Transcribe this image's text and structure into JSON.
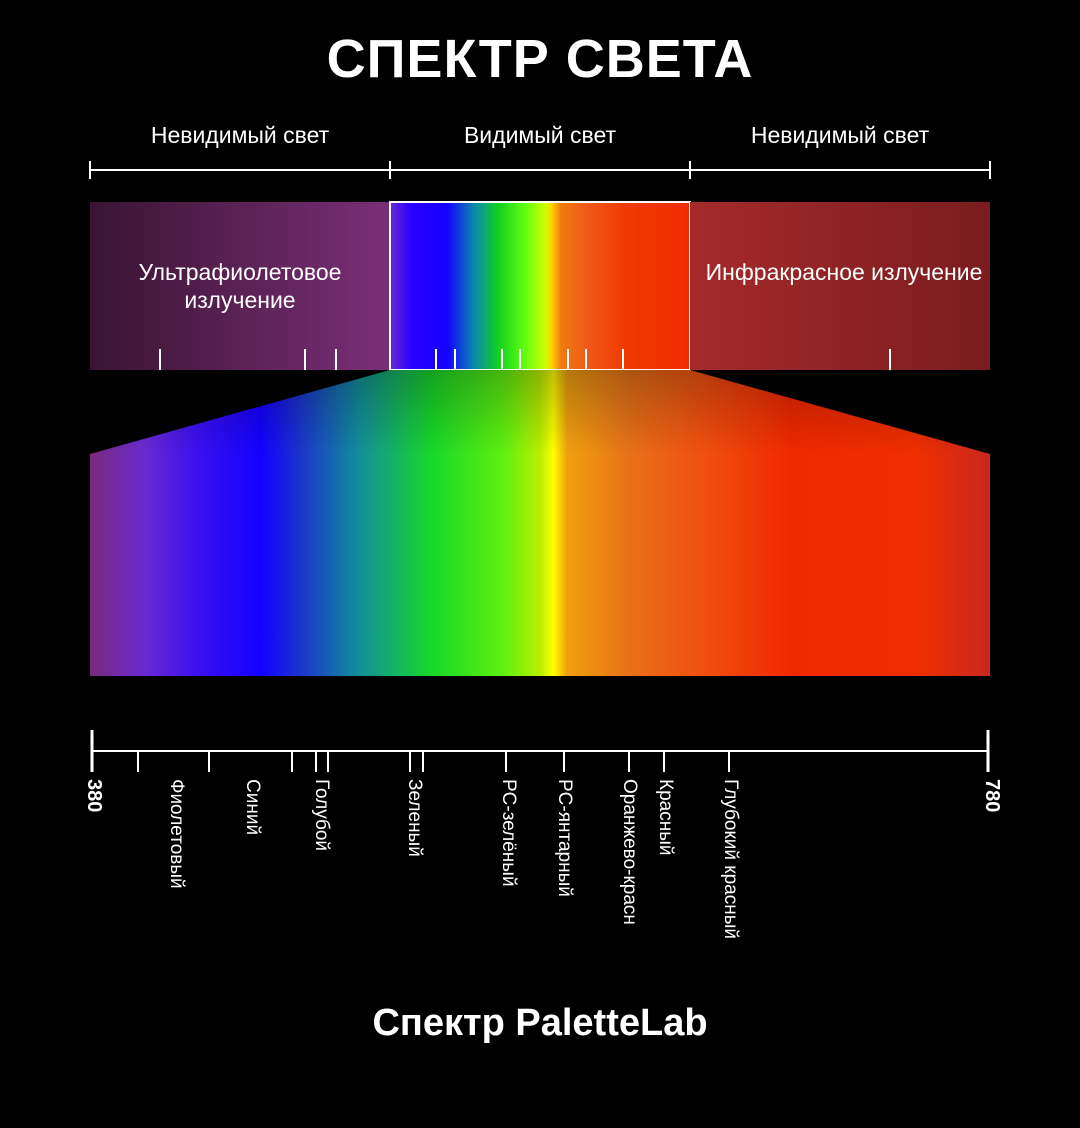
{
  "title": "СПЕКТР СВЕТА",
  "regions": {
    "left": "Невидимый свет",
    "center": "Видимый свет",
    "right": "Невидимый свет"
  },
  "bands": {
    "uv": "Ультрафиолетовое излучение",
    "ir": "Инфракрасное излучение"
  },
  "scale": {
    "min_label": "380",
    "max_label": "780",
    "labels": [
      "Фиолетовый",
      "Синий",
      "Голубой",
      "Зеленый",
      "PC-зелёный",
      "PC-янтарный",
      "Оранжево-красн",
      "Красный",
      "Глубокий красный"
    ]
  },
  "colors": {
    "background": "#000000",
    "uv_dark": "#3a1432",
    "uv_light": "#7a2f78",
    "ir_light": "#a52a2a",
    "ir_dark": "#7a1c1e",
    "violet": "#6b2a8a",
    "blue": "#1400ff",
    "cyan": "#00aaaa",
    "green": "#19e619",
    "yellow": "#ffff00",
    "orange": "#e85010",
    "red": "#f02800",
    "deep_red": "#c8281e"
  },
  "footer": "Спектр PaletteLab"
}
